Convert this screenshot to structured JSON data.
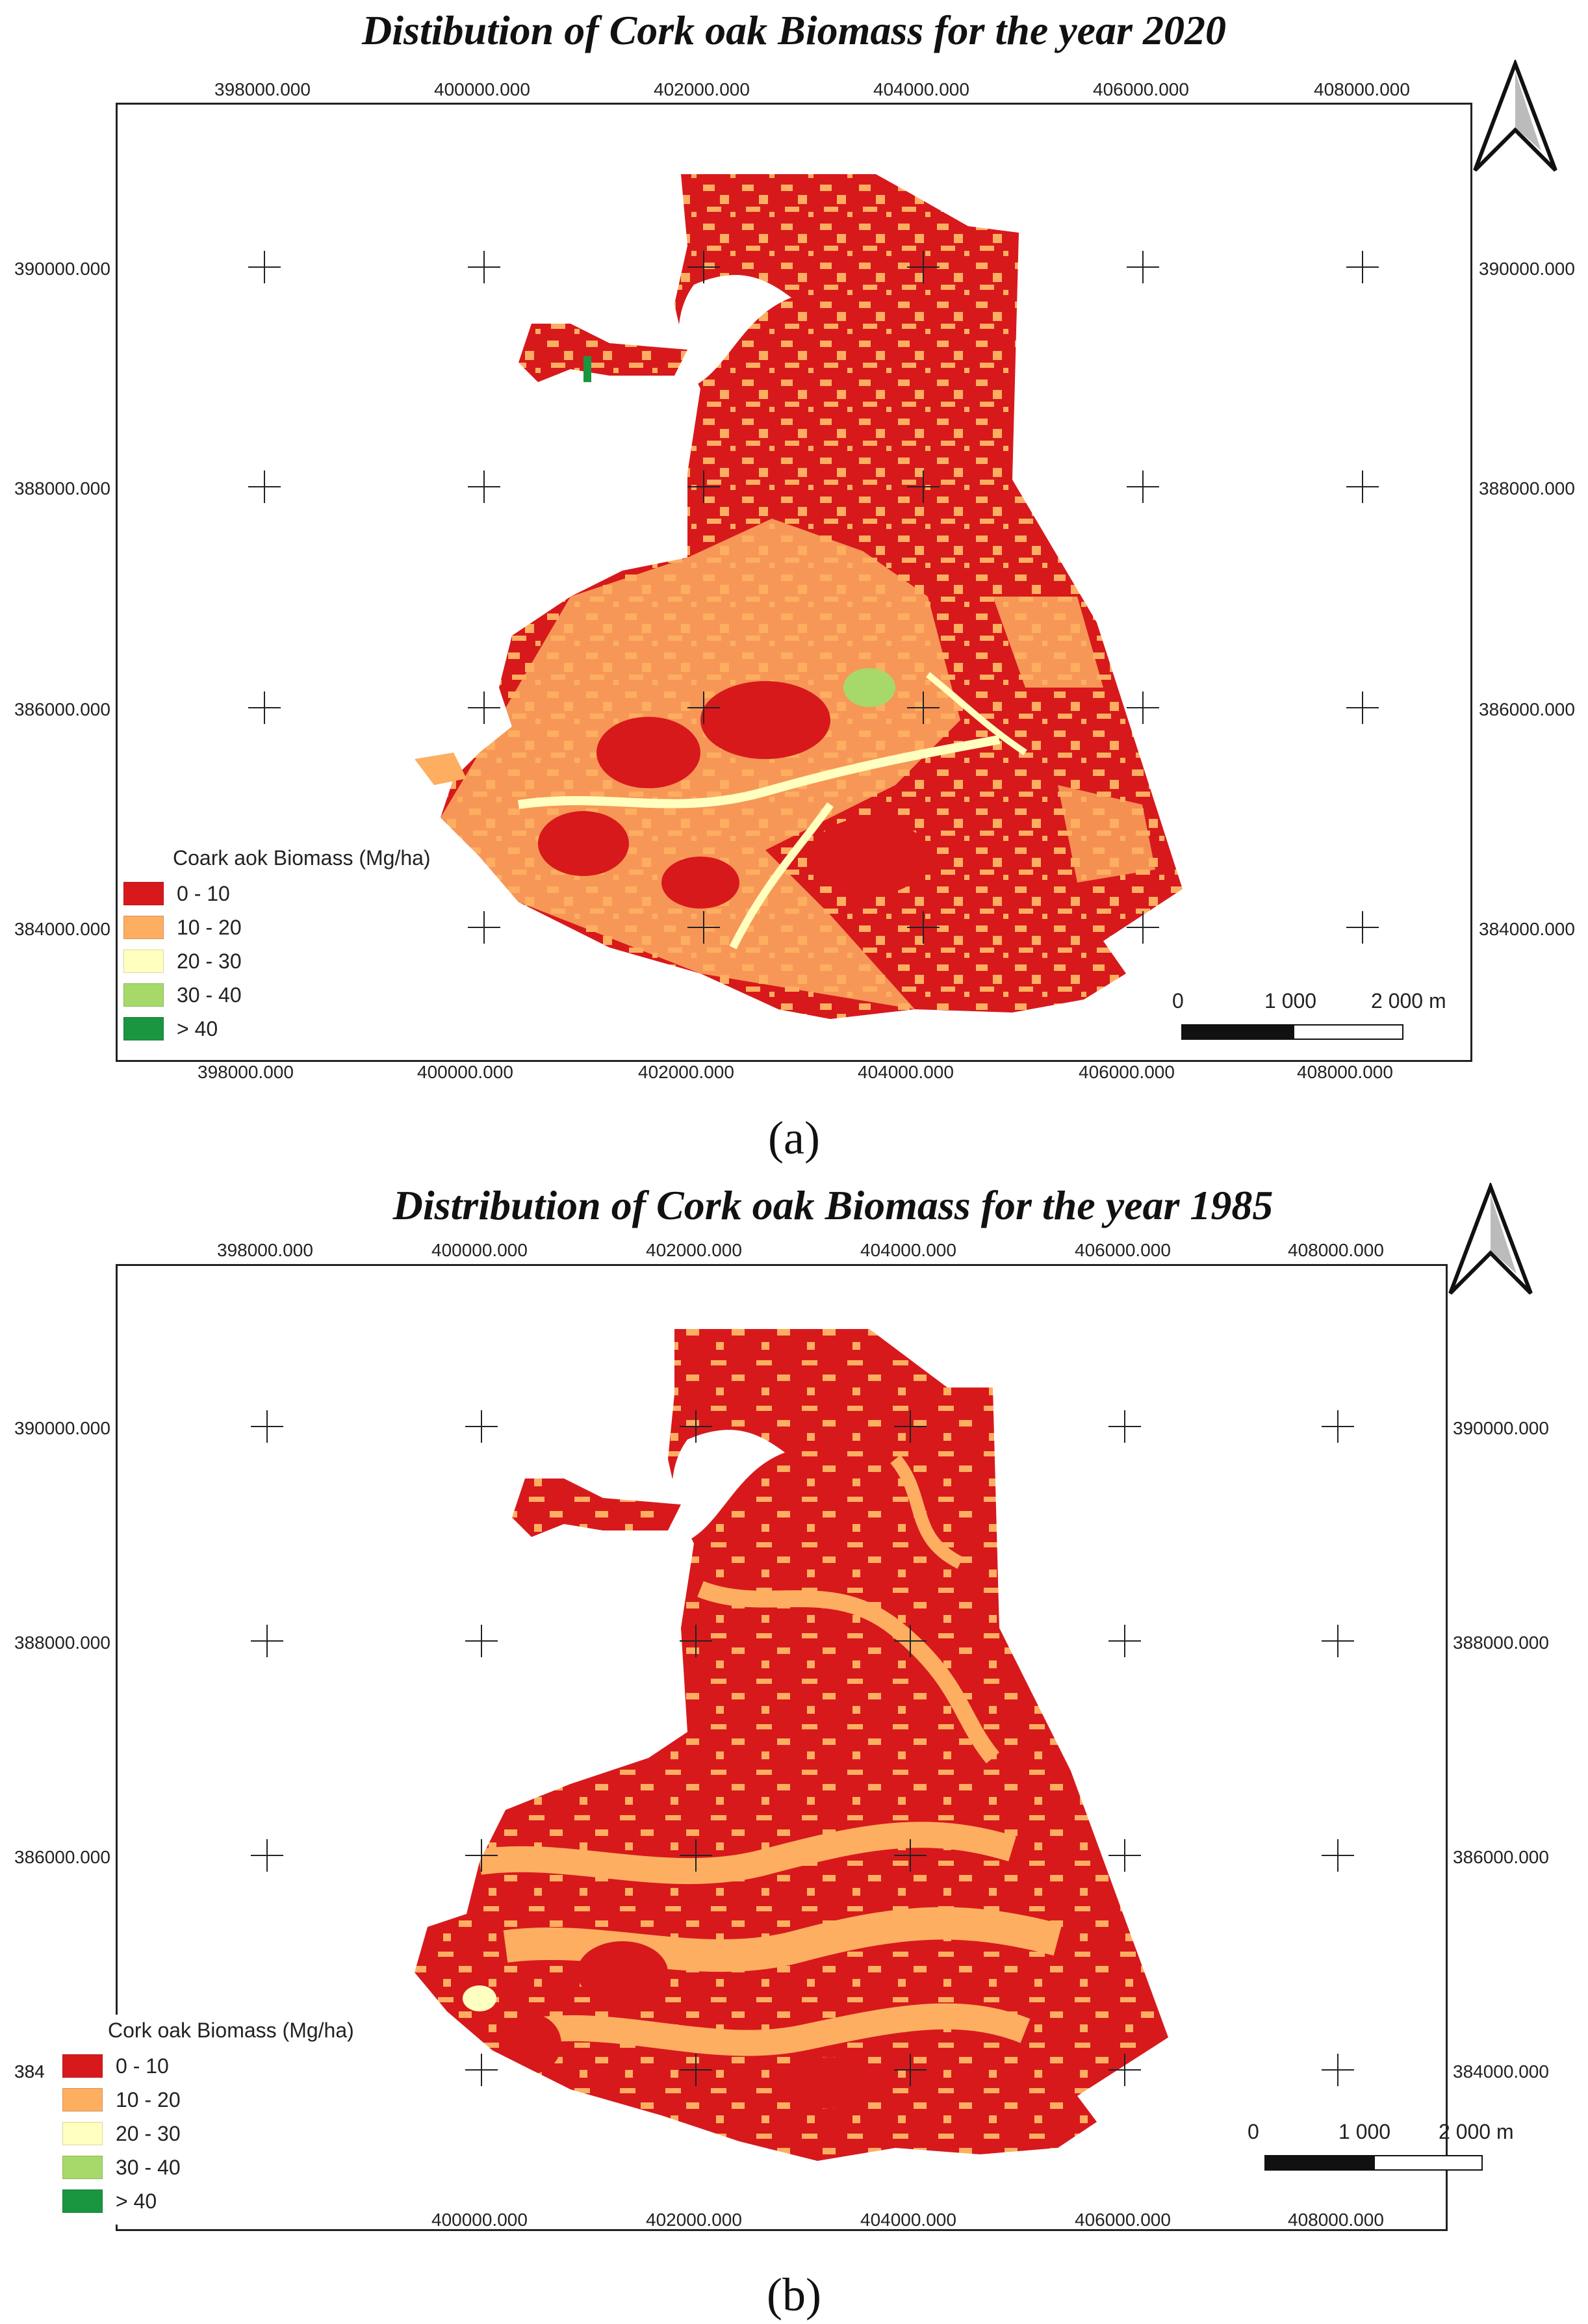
{
  "panel_a": {
    "title": "Distibution of Cork oak Biomass for the year 2020",
    "label": "(a)",
    "x_ticks": [
      "398000.000",
      "400000.000",
      "402000.000",
      "404000.000",
      "406000.000",
      "408000.000"
    ],
    "y_ticks": [
      "390000.000",
      "388000.000",
      "386000.000",
      "384000.000"
    ],
    "legend_title": "Coark aok Biomass (Mg/ha)",
    "legend": [
      {
        "label": "0 - 10",
        "color": "#d7191c"
      },
      {
        "label": "10 - 20",
        "color": "#fdae61"
      },
      {
        "label": "20 - 30",
        "color": "#ffffbf"
      },
      {
        "label": "30 - 40",
        "color": "#a6d96a"
      },
      {
        "label": "> 40",
        "color": "#1a9641"
      }
    ],
    "scale_labels": [
      "0",
      "1 000",
      "2 000 m"
    ]
  },
  "panel_b": {
    "title": "Distribution of Cork oak Biomass for the year 1985",
    "label": "(b)",
    "x_ticks_top": [
      "398000.000",
      "400000.000",
      "402000.000",
      "404000.000",
      "406000.000",
      "408000.000"
    ],
    "x_ticks_bottom": [
      "400000.000",
      "402000.000",
      "404000.000",
      "406000.000",
      "408000.000"
    ],
    "y_ticks_right": [
      "390000.000",
      "388000.000",
      "386000.000",
      "384000.000"
    ],
    "y_ticks_left": [
      "390000.000",
      "388000.000",
      "386000.000",
      "384"
    ],
    "legend_title": "Cork oak Biomass (Mg/ha)",
    "legend": [
      {
        "label": "0 - 10",
        "color": "#d7191c"
      },
      {
        "label": "10 - 20",
        "color": "#fdae61"
      },
      {
        "label": "20 - 30",
        "color": "#ffffbf"
      },
      {
        "label": "30 - 40",
        "color": "#a6d96a"
      },
      {
        "label": "> 40",
        "color": "#1a9641"
      }
    ],
    "scale_labels": [
      "0",
      "1 000",
      "2 000 m"
    ]
  }
}
